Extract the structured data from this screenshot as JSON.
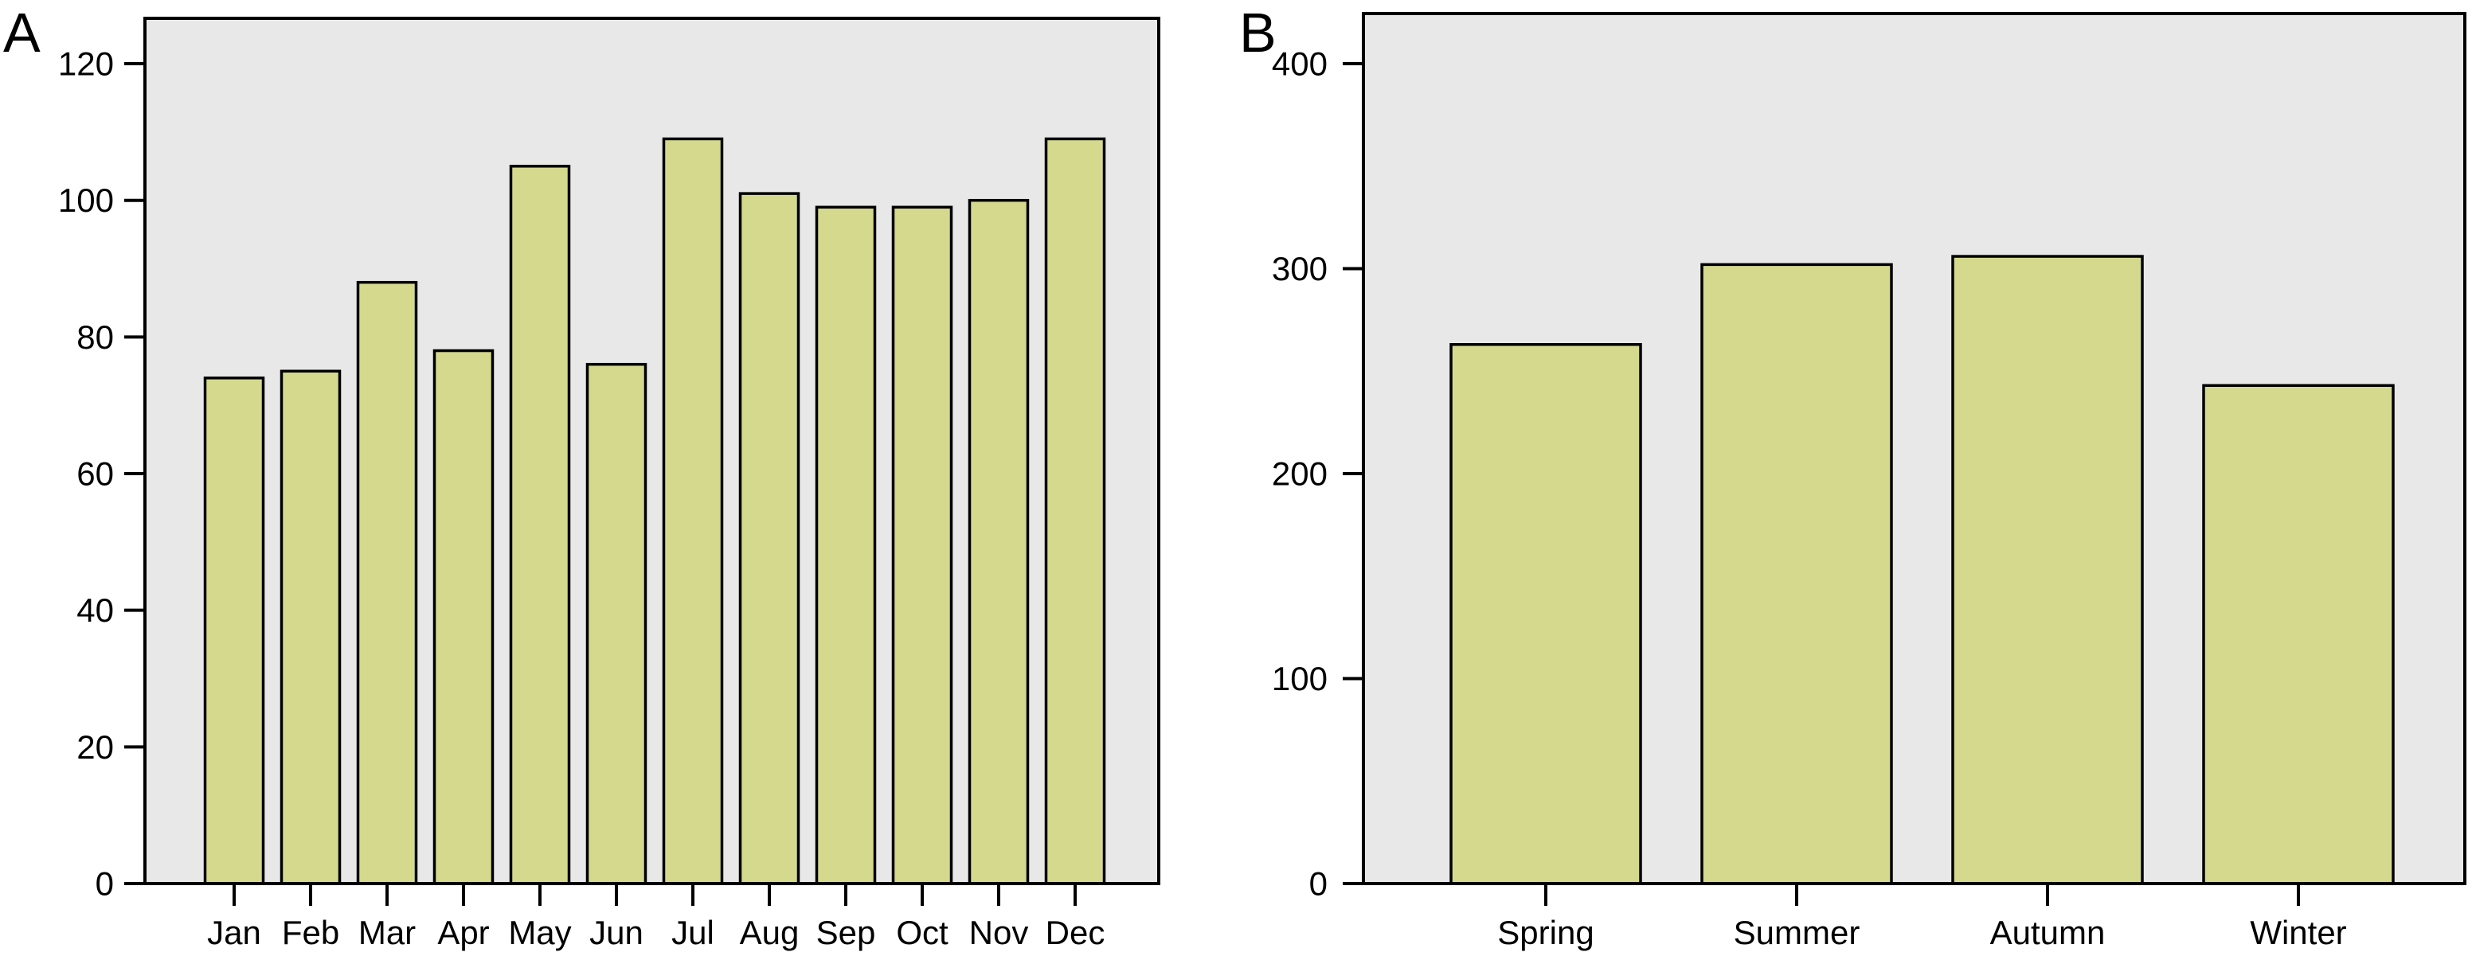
{
  "figure": {
    "panels": [
      {
        "label": "A"
      },
      {
        "label": "B"
      }
    ]
  },
  "colors": {
    "page_bg": "#ffffff",
    "plot_bg": "#e8e8e8",
    "bar_fill": "#d5d98e",
    "bar_stroke": "#000000",
    "axis": "#000000",
    "text": "#000000"
  },
  "chart_data": [
    {
      "type": "bar",
      "panel_label": "A",
      "title": "",
      "xlabel": "",
      "ylabel": "",
      "categories": [
        "Jan",
        "Feb",
        "Mar",
        "Apr",
        "May",
        "Jun",
        "Jul",
        "Aug",
        "Sep",
        "Oct",
        "Nov",
        "Dec"
      ],
      "values": [
        74,
        75,
        88,
        78,
        105,
        76,
        109,
        101,
        99,
        99,
        100,
        109
      ],
      "yticks": [
        0,
        20,
        40,
        60,
        80,
        100,
        120
      ],
      "ylim": [
        0,
        127
      ],
      "grid": false,
      "legend": "none"
    },
    {
      "type": "bar",
      "panel_label": "B",
      "title": "",
      "xlabel": "",
      "ylabel": "",
      "categories": [
        "Spring",
        "Summer",
        "Autumn",
        "Winter"
      ],
      "values": [
        263,
        302,
        306,
        243
      ],
      "yticks": [
        0,
        100,
        200,
        300,
        400
      ],
      "ylim": [
        0,
        424
      ],
      "grid": false,
      "legend": "none"
    }
  ]
}
